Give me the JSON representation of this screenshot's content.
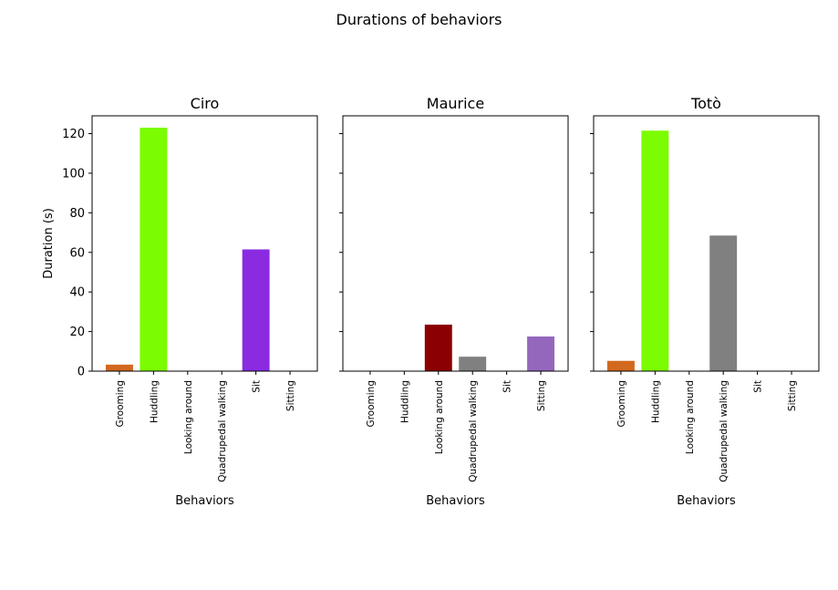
{
  "figure": {
    "title": "Durations of behaviors"
  },
  "chart_data": [
    {
      "type": "bar",
      "title": "Ciro",
      "xlabel": "Behaviors",
      "ylabel": "Duration (s)",
      "ylim": [
        0,
        129
      ],
      "yticks": [
        0,
        20,
        40,
        60,
        80,
        100,
        120
      ],
      "grid": false,
      "categories": [
        "Grooming",
        "Huddling",
        "Looking around",
        "Quadrupedal walking",
        "Sit",
        "Sitting"
      ],
      "values": [
        3.3,
        123,
        0,
        0,
        61.5,
        0
      ],
      "colors": [
        "#d2691e",
        "#7cfc00",
        "#8b0000",
        "#808080",
        "#8a2be2",
        "#9467bd"
      ]
    },
    {
      "type": "bar",
      "title": "Maurice",
      "xlabel": "Behaviors",
      "ylabel": "",
      "ylim": [
        0,
        129
      ],
      "yticks": [
        0,
        20,
        40,
        60,
        80,
        100,
        120
      ],
      "grid": false,
      "categories": [
        "Grooming",
        "Huddling",
        "Looking around",
        "Quadrupedal walking",
        "Sit",
        "Sitting"
      ],
      "values": [
        0,
        0,
        23.5,
        7.3,
        0,
        17.5
      ],
      "colors": [
        "#d2691e",
        "#7cfc00",
        "#8b0000",
        "#808080",
        "#8a2be2",
        "#9467bd"
      ]
    },
    {
      "type": "bar",
      "title": "Totò",
      "xlabel": "Behaviors",
      "ylabel": "",
      "ylim": [
        0,
        129
      ],
      "yticks": [
        0,
        20,
        40,
        60,
        80,
        100,
        120
      ],
      "grid": false,
      "categories": [
        "Grooming",
        "Huddling",
        "Looking around",
        "Quadrupedal walking",
        "Sit",
        "Sitting"
      ],
      "values": [
        5.2,
        121.5,
        0,
        68.5,
        0,
        0
      ],
      "colors": [
        "#d2691e",
        "#7cfc00",
        "#8b0000",
        "#808080",
        "#8a2be2",
        "#9467bd"
      ]
    }
  ]
}
